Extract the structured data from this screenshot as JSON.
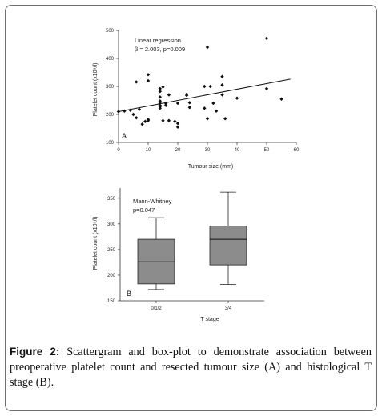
{
  "chart_data": [
    {
      "type": "scatter",
      "panel_label": "A",
      "annotation": [
        "Linear regression",
        "β = 2.003, p=0.009"
      ],
      "xlabel": "Tumour size (mm)",
      "ylabel": "Platelet count (x10⁹/l)",
      "xlim": [
        0,
        60
      ],
      "ylim": [
        100,
        500
      ],
      "xticks": [
        0,
        10,
        20,
        30,
        40,
        50,
        60
      ],
      "yticks": [
        100,
        200,
        300,
        400,
        500
      ],
      "regression_line": {
        "x": [
          0,
          58
        ],
        "y": [
          210,
          326
        ]
      },
      "points": [
        [
          0,
          210
        ],
        [
          2,
          212
        ],
        [
          4,
          215
        ],
        [
          5,
          200
        ],
        [
          6,
          316
        ],
        [
          6,
          188
        ],
        [
          7,
          218
        ],
        [
          8,
          165
        ],
        [
          9,
          175
        ],
        [
          10,
          342
        ],
        [
          10,
          320
        ],
        [
          10,
          182
        ],
        [
          10,
          178
        ],
        [
          14,
          292
        ],
        [
          14,
          282
        ],
        [
          14,
          262
        ],
        [
          14,
          248
        ],
        [
          14,
          240
        ],
        [
          14,
          232
        ],
        [
          14,
          228
        ],
        [
          14,
          222
        ],
        [
          15,
          298
        ],
        [
          15,
          178
        ],
        [
          16,
          238
        ],
        [
          16,
          232
        ],
        [
          17,
          270
        ],
        [
          17,
          178
        ],
        [
          19,
          175
        ],
        [
          20,
          240
        ],
        [
          20,
          155
        ],
        [
          20,
          168
        ],
        [
          23,
          272
        ],
        [
          23,
          268
        ],
        [
          24,
          242
        ],
        [
          24,
          225
        ],
        [
          29,
          300
        ],
        [
          29,
          222
        ],
        [
          30,
          440
        ],
        [
          30,
          185
        ],
        [
          31,
          300
        ],
        [
          32,
          240
        ],
        [
          33,
          212
        ],
        [
          35,
          335
        ],
        [
          35,
          305
        ],
        [
          35,
          270
        ],
        [
          36,
          185
        ],
        [
          40,
          258
        ],
        [
          50,
          472
        ],
        [
          50,
          292
        ],
        [
          55,
          255
        ]
      ]
    },
    {
      "type": "box",
      "panel_label": "B",
      "annotation": [
        "Mann-Whitney",
        "p=0.047"
      ],
      "xlabel": "T stage",
      "ylabel": "Platelet count (x10⁹/l)",
      "ylim": [
        150,
        370
      ],
      "yticks": [
        150,
        200,
        250,
        300,
        350
      ],
      "categories": [
        "0/1/2",
        "3/4"
      ],
      "boxes": [
        {
          "min": 172,
          "q1": 183,
          "median": 226,
          "q3": 270,
          "max": 312
        },
        {
          "min": 182,
          "q1": 220,
          "median": 270,
          "q3": 296,
          "max": 362
        }
      ]
    }
  ],
  "caption": {
    "label": "Figure 2:",
    "text": " Scattergram and box-plot to demonstrate association between preoperative platelet count and resected tumour size (A) and histological T stage (B)."
  }
}
